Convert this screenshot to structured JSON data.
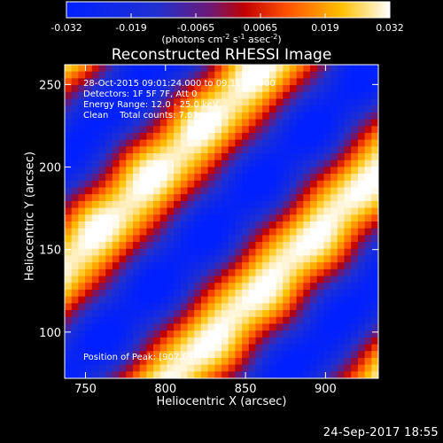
{
  "chart_data": {
    "type": "heatmap",
    "title": "Reconstructed RHESSI Image",
    "xlabel": "Heliocentric X (arcsec)",
    "ylabel": "Heliocentric Y (arcsec)",
    "xlim": [
      737,
      933
    ],
    "ylim": [
      72,
      262
    ],
    "x_ticks": [
      "750",
      "800",
      "850",
      "900"
    ],
    "y_ticks": [
      "100",
      "150",
      "200",
      "250"
    ],
    "colorbar": {
      "min": -0.032,
      "max": 0.032,
      "ticks": [
        "-0.032",
        "-0.019",
        "-0.0065",
        "0.0065",
        "0.019",
        "0.032"
      ],
      "units_prefix": "(photons cm",
      "units_sup1": "-2",
      "units_mid": " s",
      "units_sup2": "-1",
      "units_mid2": " asec",
      "units_sup3": "-2",
      "units_suffix": ")"
    },
    "stripe_orientation": "diagonal, upper-left to lower-right",
    "peak_position": [
      907,
      69
    ],
    "annotations": {
      "time_range": "28-Oct-2015 09:01:24.000 to 09:11:24.000",
      "detectors": "Detectors: 1F 5F 7F, Att 0",
      "energy": "Energy Range: 12.0 - 25.0 keV",
      "clean": "Clean    Total counts: 7.62e+03",
      "peak": "Position of Peak: [907,69]"
    },
    "footer_date": "24-Sep-2017 18:55",
    "colors": {
      "background": "#000000",
      "axes": "#ffffff",
      "colormap": [
        "#0020ff",
        "#2030d0",
        "#701870",
        "#c00000",
        "#ff5000",
        "#ffc000",
        "#ffffff"
      ]
    }
  }
}
